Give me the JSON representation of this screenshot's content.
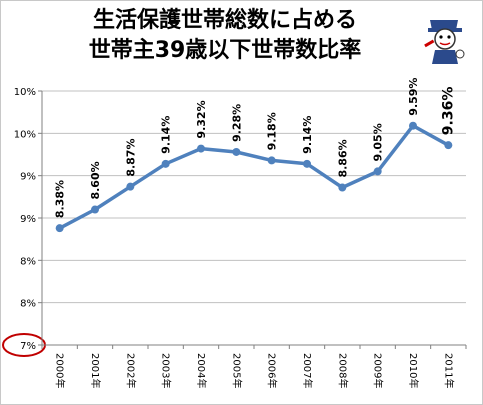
{
  "chart_data": {
    "type": "line",
    "title_lines": [
      "生活保護世帯総数に占める",
      "世帯主39歳以下世帯数比率"
    ],
    "xlabel": "",
    "ylabel": "",
    "x": [
      "2000年",
      "2001年",
      "2002年",
      "2003年",
      "2004年",
      "2005年",
      "2006年",
      "2007年",
      "2008年",
      "2009年",
      "2010年",
      "2011年"
    ],
    "series": [
      {
        "values": [
          8.38,
          8.6,
          8.87,
          9.14,
          9.32,
          9.28,
          9.18,
          9.14,
          8.86,
          9.05,
          9.59,
          9.36
        ]
      }
    ],
    "data_labels": [
      "8.38%",
      "8.60%",
      "8.87%",
      "9.14%",
      "9.32%",
      "9.28%",
      "9.18%",
      "9.14%",
      "8.86%",
      "9.05%",
      "9.59%",
      "9.36%"
    ],
    "ylim": [
      7.0,
      10.0
    ],
    "yticks": [
      7.0,
      7.5,
      8.0,
      8.5,
      9.0,
      9.5,
      10.0
    ],
    "ytick_labels": [
      "7%",
      "8%",
      "8%",
      "9%",
      "9%",
      "10%",
      "10%"
    ],
    "grid": true,
    "line_color": "#4f81bd",
    "highlight_color": "#c00000",
    "highlighted_tick": "7%"
  }
}
